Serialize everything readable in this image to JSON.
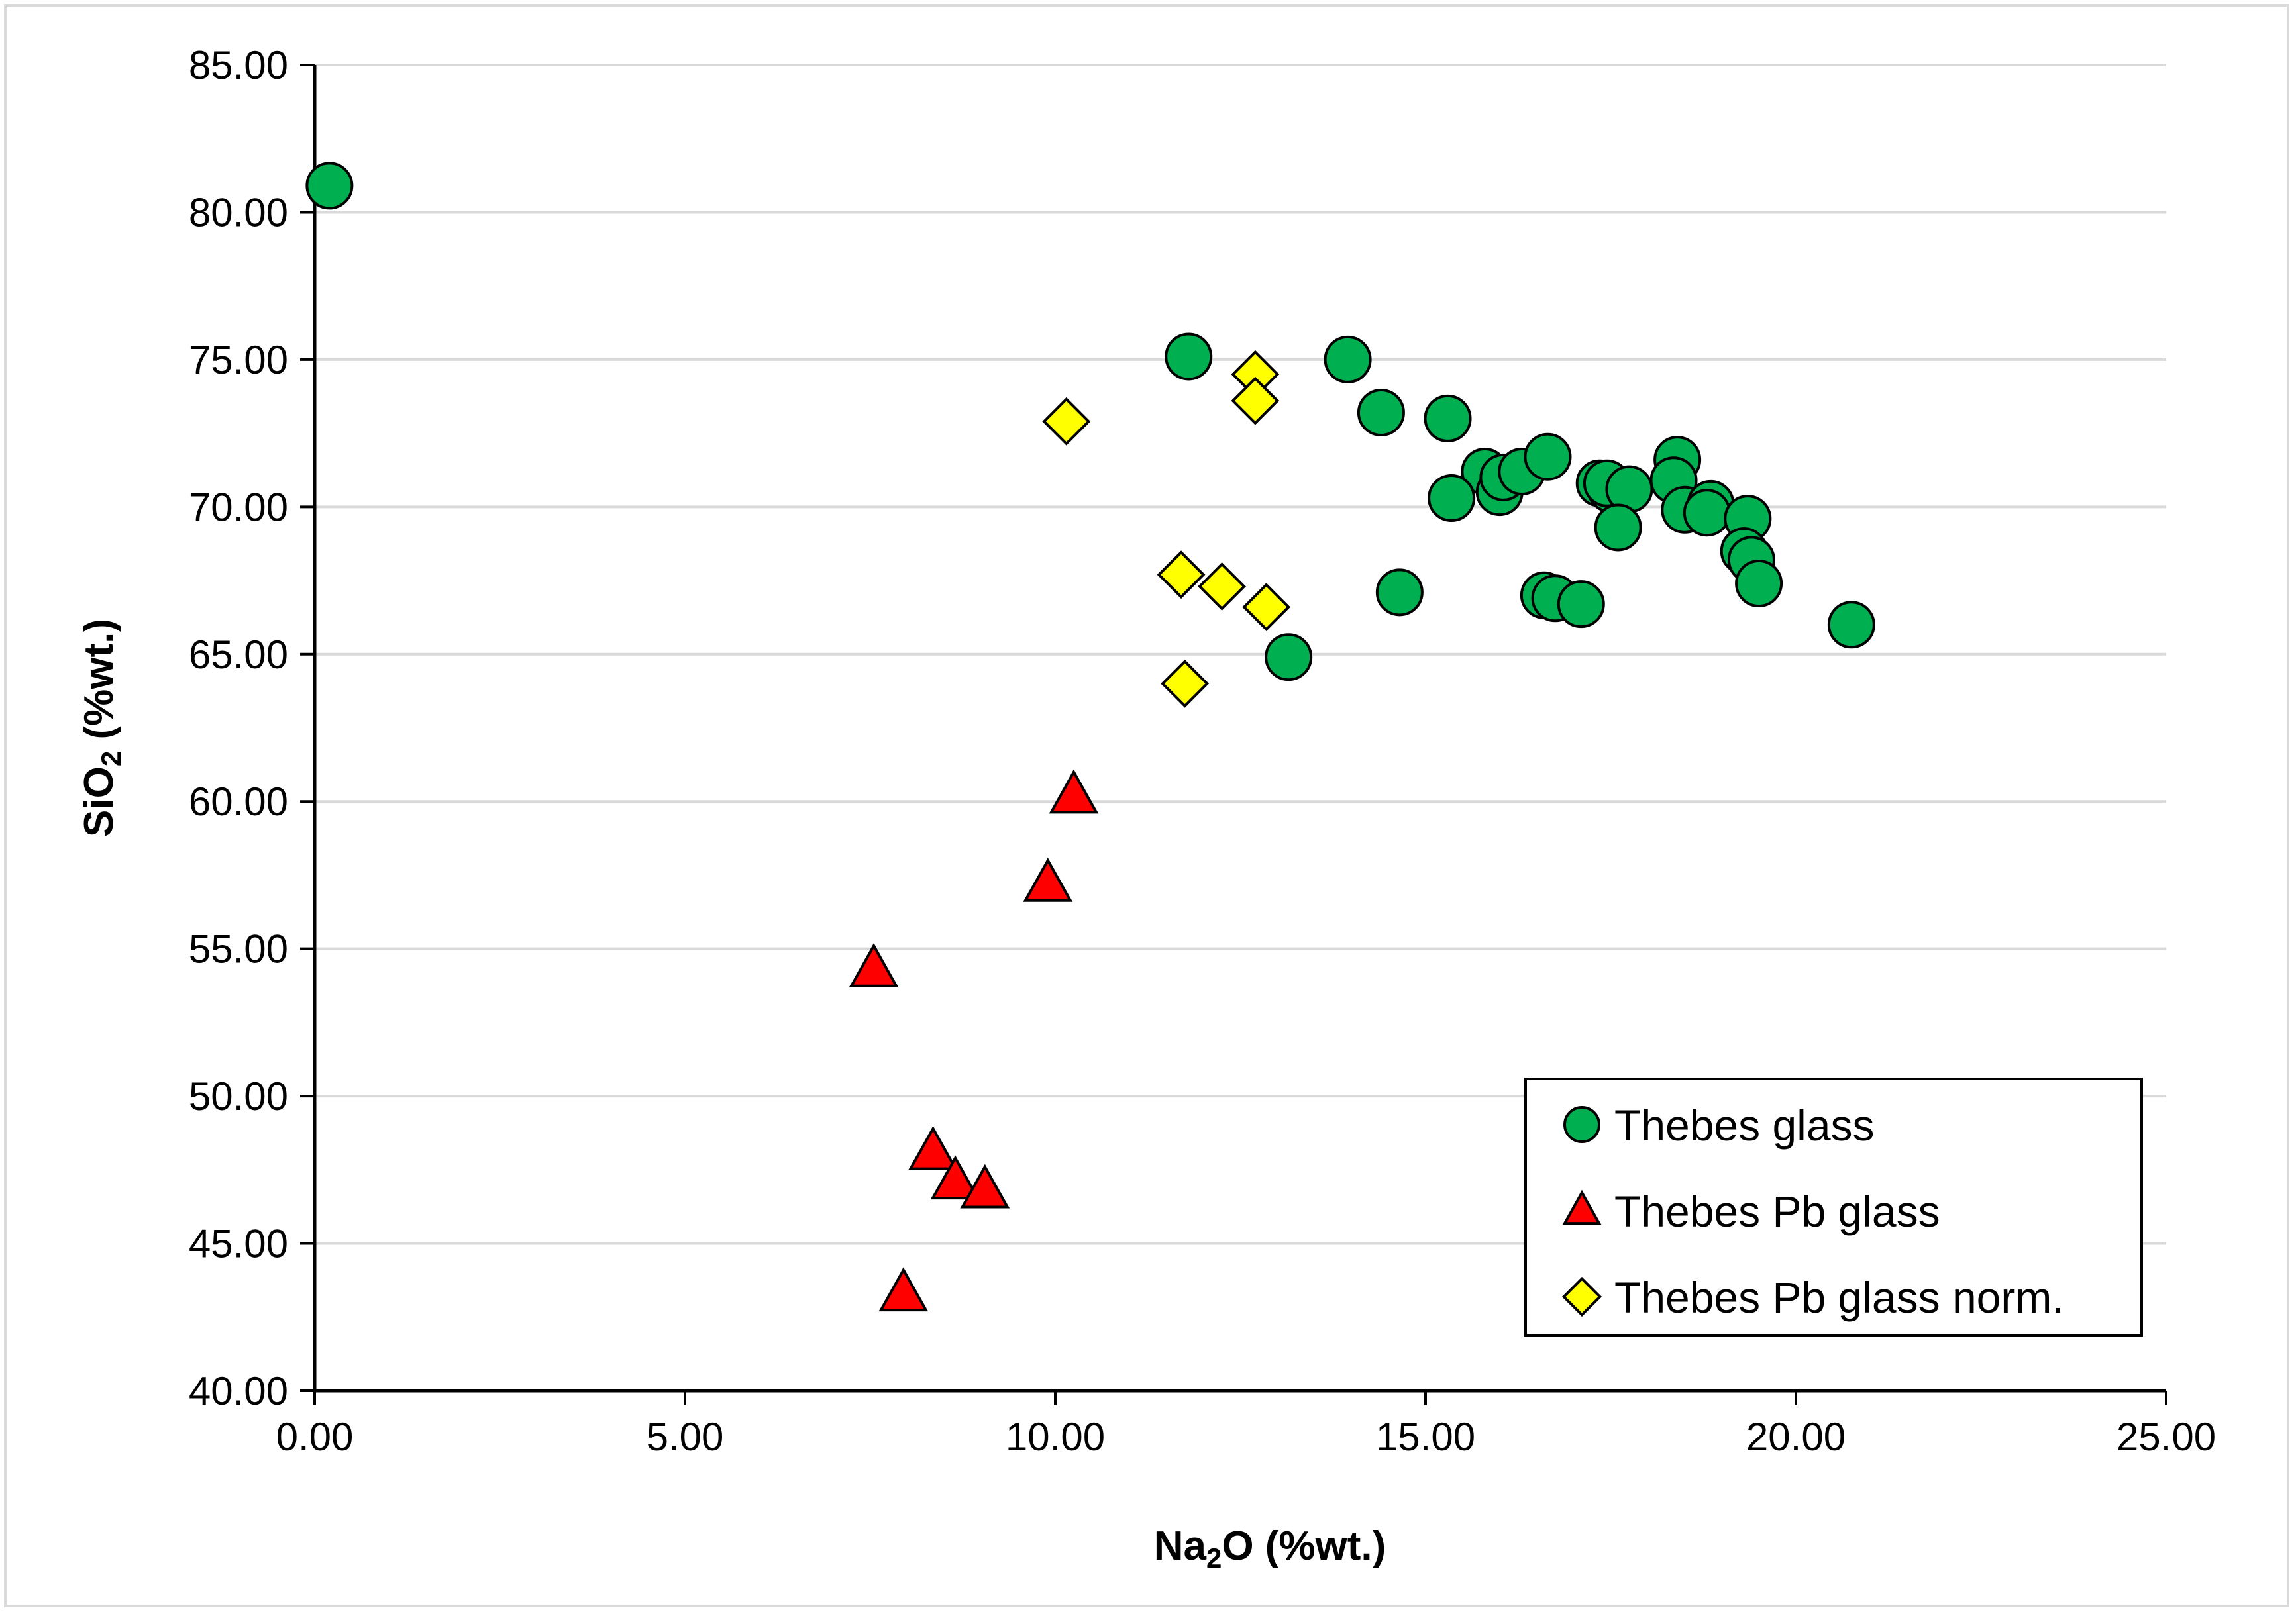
{
  "chart_data": {
    "type": "scatter",
    "xlabel": {
      "main": "Na",
      "sub": "2",
      "rest": "O (%wt.)"
    },
    "ylabel": {
      "main": "SiO",
      "sub": "2",
      "rest": " (%wt.)"
    },
    "xlim": [
      0,
      25
    ],
    "ylim": [
      40,
      85
    ],
    "xticks": [
      "0.00",
      "5.00",
      "10.00",
      "15.00",
      "20.00",
      "25.00"
    ],
    "yticks": [
      "40.00",
      "45.00",
      "50.00",
      "55.00",
      "60.00",
      "65.00",
      "70.00",
      "75.00",
      "80.00",
      "85.00"
    ],
    "grid": "horizontal",
    "legend_position": "bottom-right",
    "colors": {
      "thebes_glass": "#00b050",
      "thebes_pb_glass": "#ff0000",
      "thebes_pb_glass_norm": "#ffff00",
      "gridline": "#d9d9d9",
      "axis": "#000000"
    },
    "series": [
      {
        "name": "Thebes glass",
        "marker": "circle",
        "points": [
          [
            0.2,
            80.9
          ],
          [
            11.8,
            75.1
          ],
          [
            13.95,
            75.0
          ],
          [
            14.4,
            73.2
          ],
          [
            15.3,
            73.0
          ],
          [
            15.8,
            71.2
          ],
          [
            16.0,
            70.5
          ],
          [
            16.05,
            71.0
          ],
          [
            16.3,
            71.2
          ],
          [
            16.65,
            71.7
          ],
          [
            17.35,
            70.8
          ],
          [
            17.5,
            70.6
          ],
          [
            17.45,
            70.8
          ],
          [
            17.75,
            70.6
          ],
          [
            18.4,
            71.6
          ],
          [
            18.35,
            70.9
          ],
          [
            18.5,
            69.9
          ],
          [
            18.85,
            70.1
          ],
          [
            18.8,
            69.8
          ],
          [
            19.35,
            69.6
          ],
          [
            19.3,
            68.5
          ],
          [
            19.4,
            68.2
          ],
          [
            19.5,
            67.4
          ],
          [
            17.6,
            69.3
          ],
          [
            15.35,
            70.3
          ],
          [
            14.65,
            67.1
          ],
          [
            16.6,
            67.0
          ],
          [
            16.75,
            66.9
          ],
          [
            17.1,
            66.7
          ],
          [
            13.15,
            64.9
          ],
          [
            20.75,
            66.0
          ]
        ]
      },
      {
        "name": "Thebes Pb glass",
        "marker": "triangle",
        "points": [
          [
            10.25,
            60.2
          ],
          [
            9.9,
            57.2
          ],
          [
            7.55,
            54.3
          ],
          [
            8.35,
            48.1
          ],
          [
            8.65,
            47.1
          ],
          [
            9.05,
            46.8
          ],
          [
            7.95,
            43.3
          ]
        ]
      },
      {
        "name": "Thebes Pb glass norm.",
        "marker": "diamond",
        "points": [
          [
            10.15,
            72.9
          ],
          [
            12.7,
            74.5
          ],
          [
            12.7,
            73.6
          ],
          [
            11.7,
            67.7
          ],
          [
            12.25,
            67.3
          ],
          [
            12.85,
            66.6
          ],
          [
            11.75,
            64.0
          ]
        ]
      }
    ]
  }
}
